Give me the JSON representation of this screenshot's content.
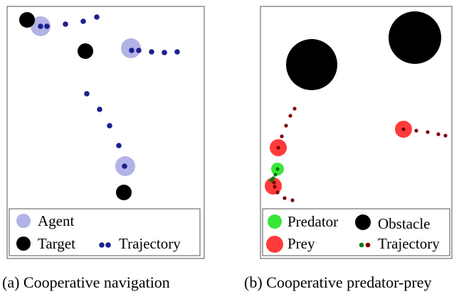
{
  "panels": [
    {
      "id": "a",
      "caption": "(a) Cooperative navigation",
      "legend": {
        "agent": "Agent",
        "target": "Target",
        "trajectory": "Trajectory"
      }
    },
    {
      "id": "b",
      "caption": "(b) Cooperative predator-prey",
      "legend": {
        "predator": "Predator",
        "obstacle": "Obstacle",
        "prey": "Prey",
        "trajectory": "Trajectory"
      }
    }
  ],
  "colors": {
    "agent": "#b3b3e8",
    "trajectory_a": "#1c2090",
    "target": "#000000",
    "predator": "#37e637",
    "prey": "#ff3b3b",
    "obstacle": "#000000",
    "trajectory_b_dark": "#7a0000",
    "trajectory_b_green": "#0a7a0a"
  }
}
